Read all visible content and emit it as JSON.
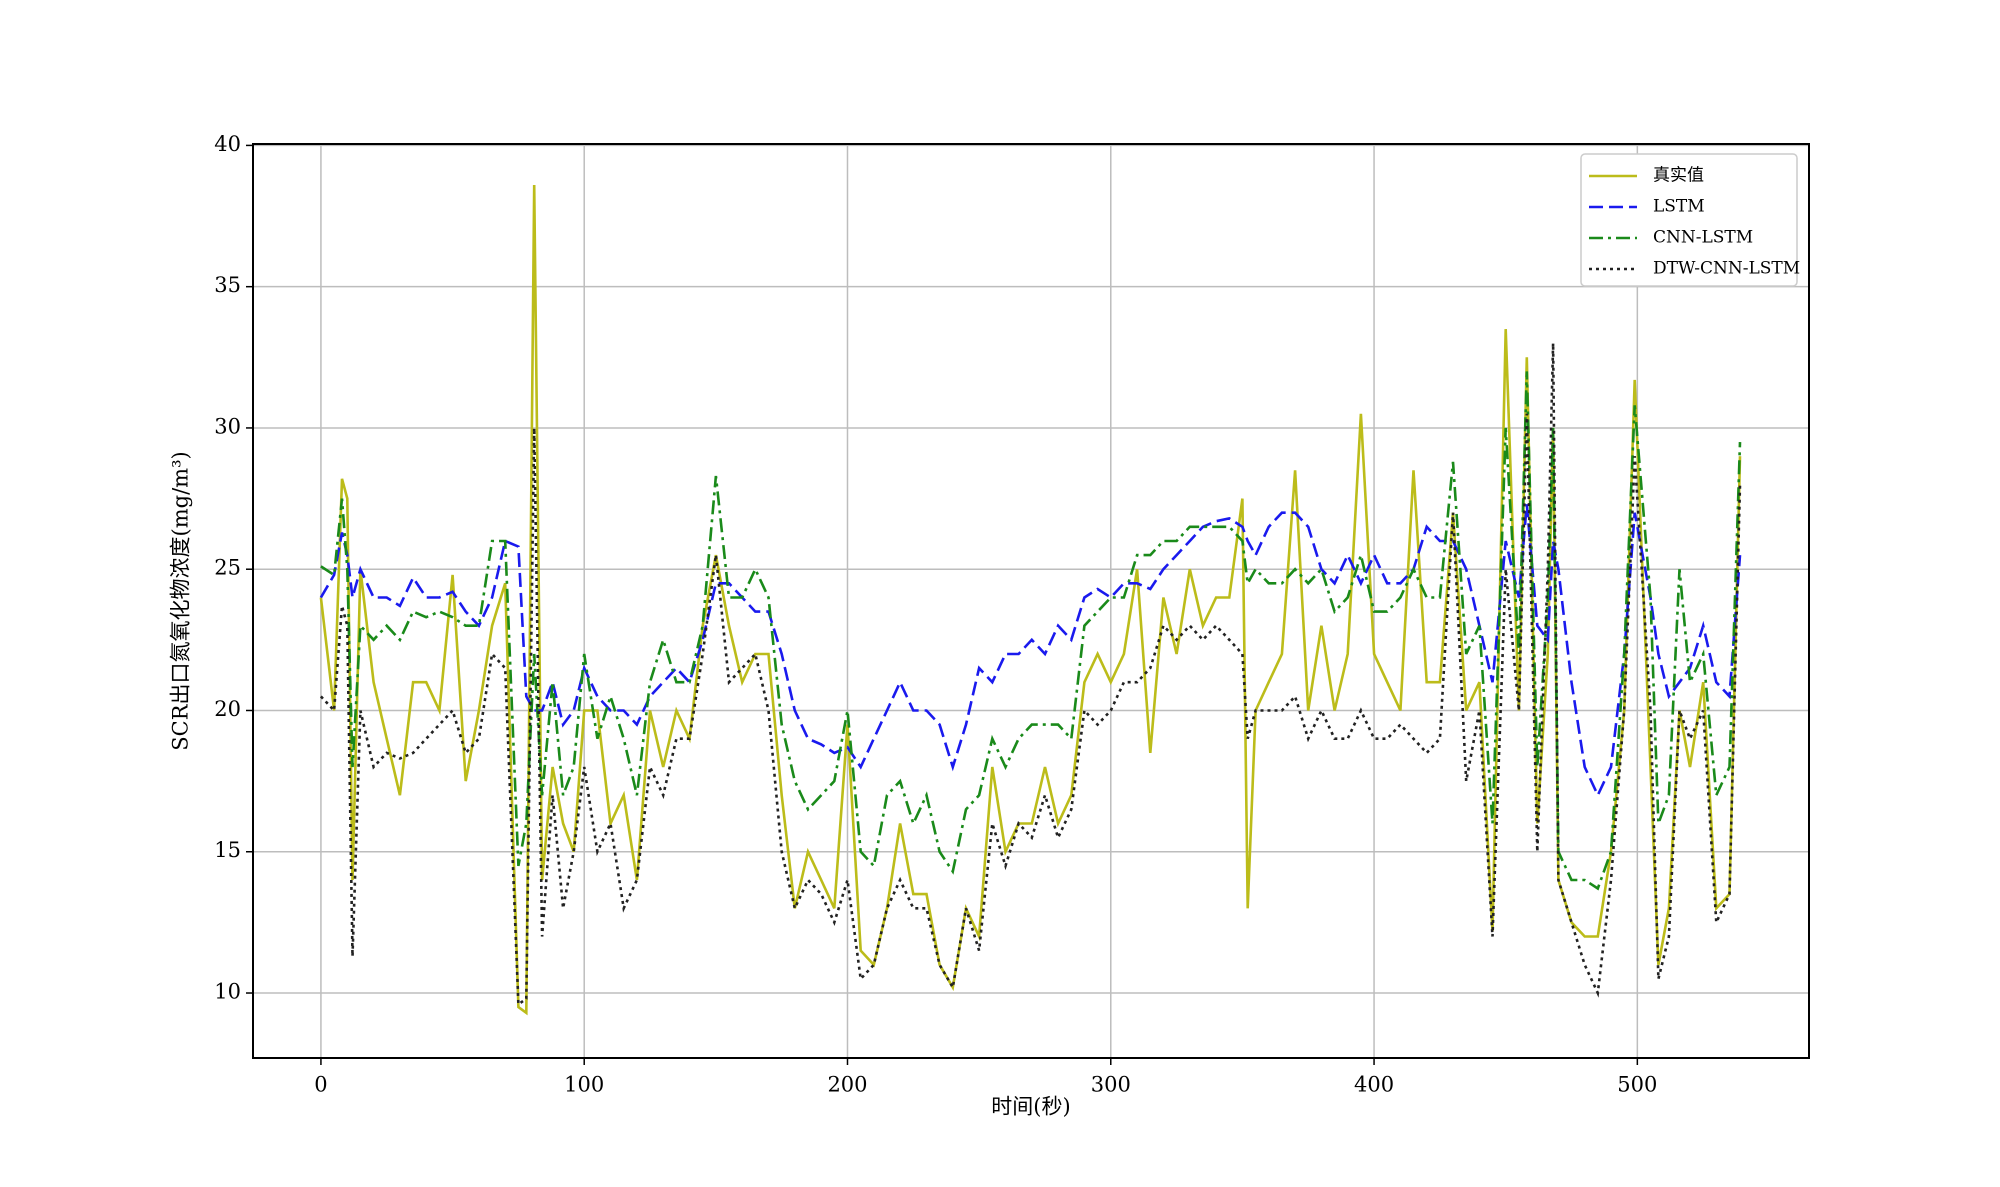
{
  "chart_data": {
    "type": "line",
    "x_label": "时间(秒)",
    "y_label": "SCR出口氮氧化物浓度(mg/m³)",
    "x": [
      0,
      5,
      8,
      10,
      12,
      15,
      20,
      25,
      30,
      35,
      40,
      45,
      50,
      55,
      60,
      65,
      70,
      75,
      78,
      81,
      84,
      88,
      92,
      96,
      100,
      105,
      110,
      115,
      120,
      125,
      130,
      135,
      140,
      145,
      150,
      155,
      160,
      165,
      170,
      175,
      180,
      185,
      190,
      195,
      200,
      205,
      210,
      215,
      220,
      225,
      230,
      235,
      240,
      245,
      250,
      255,
      260,
      265,
      270,
      275,
      280,
      285,
      290,
      295,
      300,
      305,
      310,
      315,
      320,
      325,
      330,
      335,
      340,
      345,
      350,
      352,
      355,
      360,
      365,
      370,
      375,
      380,
      385,
      390,
      395,
      400,
      405,
      410,
      415,
      420,
      425,
      430,
      435,
      440,
      445,
      450,
      455,
      458,
      462,
      466,
      468,
      470,
      475,
      480,
      485,
      490,
      495,
      499,
      505,
      508,
      512,
      516,
      520,
      525,
      530,
      535,
      539
    ],
    "series": [
      {
        "name": "真实值",
        "color": "#bcbc1a",
        "linestyle": "solid",
        "values": [
          24,
          20,
          28.2,
          27.5,
          14,
          25,
          21,
          19,
          17,
          21,
          21,
          20,
          24.8,
          17.5,
          20,
          23,
          24.5,
          9.5,
          9.3,
          38.6,
          14,
          18,
          16,
          15,
          20,
          20,
          16,
          17,
          14,
          20,
          18,
          20,
          19,
          23,
          25.5,
          23,
          21,
          22,
          22,
          17,
          13,
          15,
          14,
          13,
          19.5,
          11.5,
          11,
          13,
          16,
          13.5,
          13.5,
          11,
          10.2,
          13,
          12,
          18,
          15,
          16,
          16,
          18,
          16,
          17,
          21,
          22,
          21,
          22,
          25,
          18.5,
          24,
          22,
          25,
          23,
          24,
          24,
          27.5,
          13,
          20,
          21,
          22,
          28.5,
          20,
          23,
          20,
          22,
          30.5,
          22,
          21,
          20,
          28.5,
          21,
          21,
          27,
          20,
          21,
          12.2,
          33.5,
          20,
          32.5,
          16,
          22,
          30,
          14,
          12.5,
          12,
          12,
          15,
          20,
          31.7,
          18,
          11,
          13,
          20,
          18,
          21,
          13,
          13.5,
          29
        ]
      },
      {
        "name": "LSTM",
        "color": "#1a1aee",
        "linestyle": "dashed",
        "values": [
          24,
          24.8,
          26.3,
          25.5,
          24,
          25,
          24,
          24,
          23.7,
          24.7,
          24,
          24,
          24.2,
          23.5,
          23,
          24,
          26,
          25.8,
          20.5,
          20,
          20,
          21,
          19.5,
          20,
          21.5,
          20.5,
          20,
          20,
          19.5,
          20.5,
          21,
          21.5,
          21,
          22.5,
          24.5,
          24.5,
          24,
          23.5,
          23.5,
          22,
          20,
          19,
          18.8,
          18.5,
          18.7,
          18,
          19,
          20,
          21,
          20,
          20,
          19.5,
          18,
          19.5,
          21.5,
          21,
          22,
          22,
          22.5,
          22,
          23,
          22.5,
          24,
          24.3,
          24,
          24.5,
          24.5,
          24.3,
          25,
          25.5,
          26,
          26.5,
          26.7,
          26.8,
          26.5,
          26,
          25.5,
          26.5,
          27,
          27,
          26.5,
          25,
          24.5,
          25.5,
          24.5,
          25.5,
          24.5,
          24.5,
          25,
          26.5,
          26,
          26,
          25,
          23,
          21,
          26,
          24,
          27.3,
          23,
          22.5,
          26,
          25,
          21,
          18,
          17,
          18,
          22,
          27,
          24,
          22,
          20.5,
          21,
          21.5,
          23,
          21,
          20.5,
          25.5
        ]
      },
      {
        "name": "CNN-LSTM",
        "color": "#1a8a1a",
        "linestyle": "dashdot",
        "values": [
          25.1,
          24.8,
          27.5,
          25,
          18,
          23,
          22.5,
          23,
          22.5,
          23.5,
          23.3,
          23.5,
          23.3,
          23,
          23,
          26,
          26,
          14.5,
          16,
          22,
          17,
          21,
          17,
          18,
          22,
          19,
          20.5,
          19,
          17,
          21,
          22.5,
          21,
          21,
          23,
          28.3,
          24,
          24,
          25,
          24,
          19.5,
          17.5,
          16.5,
          17,
          17.5,
          20,
          15,
          14.5,
          17,
          17.5,
          16,
          17,
          15,
          14.3,
          16.5,
          17,
          19,
          18,
          19,
          19.5,
          19.5,
          19.5,
          19,
          23,
          23.5,
          24,
          24,
          25.5,
          25.5,
          26,
          26,
          26.5,
          26.5,
          26.5,
          26.5,
          26,
          24.5,
          25,
          24.5,
          24.5,
          25,
          24.5,
          25,
          23.5,
          24,
          25.5,
          23.5,
          23.5,
          24,
          25,
          24,
          24,
          28.8,
          22,
          23,
          16,
          30,
          22,
          32,
          18,
          24,
          30,
          15,
          14,
          14,
          13.7,
          15,
          22,
          30.8,
          24,
          16,
          17,
          25,
          21,
          22,
          17,
          18,
          29.5
        ]
      },
      {
        "name": "DTW-CNN-LSTM",
        "color": "#222222",
        "linestyle": "dotted",
        "values": [
          20.5,
          20,
          23.7,
          23,
          11.3,
          20,
          18,
          18.5,
          18.3,
          18.5,
          19,
          19.5,
          20,
          18.5,
          19,
          22,
          21.5,
          9.6,
          9.8,
          30,
          12,
          17,
          13,
          15,
          18,
          15,
          16,
          13,
          14,
          18,
          17,
          19,
          19,
          22,
          25.5,
          21,
          21.5,
          22,
          20,
          15,
          13,
          14,
          13.5,
          12.5,
          14,
          10.5,
          11,
          13,
          14,
          13,
          13,
          11,
          10.2,
          13,
          11.5,
          16,
          14.5,
          16,
          15.5,
          17,
          15.5,
          16.5,
          20,
          19.5,
          20,
          21,
          21,
          21.5,
          23,
          22.5,
          23,
          22.5,
          23,
          22.5,
          22,
          19,
          20,
          20,
          20,
          20.5,
          19,
          20,
          19,
          19,
          20,
          19,
          19,
          19.5,
          19,
          18.5,
          19,
          27,
          17.5,
          20,
          12,
          25,
          20,
          30.5,
          15,
          25,
          33,
          14,
          12.5,
          11,
          10,
          14,
          20,
          29,
          20,
          10.5,
          12,
          20,
          19,
          20,
          12.5,
          13.5,
          28
        ]
      }
    ],
    "xlim": [
      -25.8,
      565.2
    ],
    "ylim": [
      7.7,
      40.05
    ],
    "xticks": [
      0,
      100,
      200,
      300,
      400,
      500
    ],
    "yticks": [
      10,
      15,
      20,
      25,
      30,
      35,
      40
    ],
    "grid": true,
    "legend": "upper right"
  }
}
